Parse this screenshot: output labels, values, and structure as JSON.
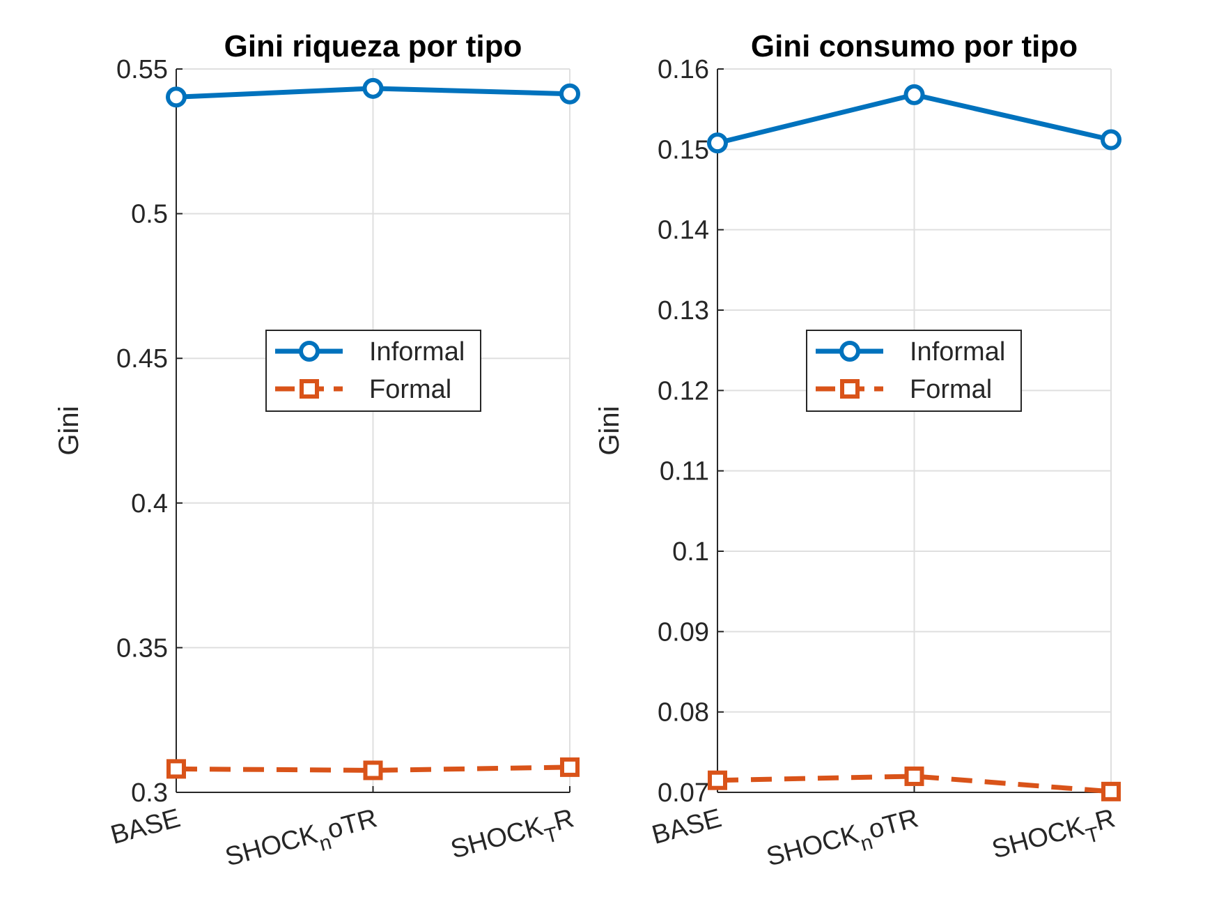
{
  "colors": {
    "informal": "#0072BD",
    "formal": "#D95319",
    "grid": "#DFDFDF",
    "axis": "#262626"
  },
  "chart_data": [
    {
      "type": "line",
      "title": "Gini riqueza por tipo",
      "ylabel": "Gini",
      "xlabel": "",
      "categories": [
        "BASE",
        "SHOCK_noTR",
        "SHOCK_TR"
      ],
      "category_labels": [
        {
          "main": "BASE",
          "sub": "",
          "tail": ""
        },
        {
          "main": "SHOCK",
          "sub": "n",
          "tail": "oTR"
        },
        {
          "main": "SHOCK",
          "sub": "T",
          "tail": "R"
        }
      ],
      "ylim": [
        0.3,
        0.55
      ],
      "yticks": [
        0.3,
        0.35,
        0.4,
        0.45,
        0.5,
        0.55
      ],
      "ytick_labels": [
        "0.3",
        "0.35",
        "0.4",
        "0.45",
        "0.5",
        "0.55"
      ],
      "grid": true,
      "legend_position": "center",
      "series": [
        {
          "name": "Informal",
          "values": [
            0.5403,
            0.5433,
            0.5414
          ],
          "marker": "circle",
          "line": "solid"
        },
        {
          "name": "Formal",
          "values": [
            0.3081,
            0.3076,
            0.3087
          ],
          "marker": "square",
          "line": "dashed"
        }
      ]
    },
    {
      "type": "line",
      "title": "Gini consumo por tipo",
      "ylabel": "Gini",
      "xlabel": "",
      "categories": [
        "BASE",
        "SHOCK_noTR",
        "SHOCK_TR"
      ],
      "category_labels": [
        {
          "main": "BASE",
          "sub": "",
          "tail": ""
        },
        {
          "main": "SHOCK",
          "sub": "n",
          "tail": "oTR"
        },
        {
          "main": "SHOCK",
          "sub": "T",
          "tail": "R"
        }
      ],
      "ylim": [
        0.07,
        0.16
      ],
      "yticks": [
        0.07,
        0.08,
        0.09,
        0.1,
        0.11,
        0.12,
        0.13,
        0.14,
        0.15,
        0.16
      ],
      "ytick_labels": [
        "0.07",
        "0.08",
        "0.09",
        "0.1",
        "0.11",
        "0.12",
        "0.13",
        "0.14",
        "0.15",
        "0.16"
      ],
      "grid": true,
      "legend_position": "center",
      "series": [
        {
          "name": "Informal",
          "values": [
            0.1508,
            0.1568,
            0.1512
          ],
          "marker": "circle",
          "line": "solid"
        },
        {
          "name": "Formal",
          "values": [
            0.0715,
            0.072,
            0.0701
          ],
          "marker": "square",
          "line": "dashed"
        }
      ]
    }
  ]
}
